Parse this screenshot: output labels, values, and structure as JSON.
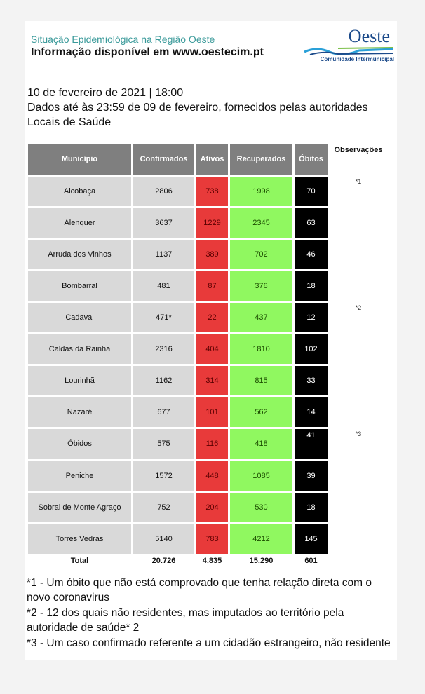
{
  "header": {
    "subtitle": "Situação Epidemiológica na Região Oeste",
    "info": "Informação disponível em www.oestecim.pt",
    "logo_text": "Oeste",
    "logo_sub": "Comunidade Intermunicipal"
  },
  "date_line": "10 de fevereiro de 2021 | 18:00",
  "data_line": "Dados até às 23:59 de 09 de fevereiro, fornecidos pelas autoridades Locais de Saúde",
  "table": {
    "headers": [
      "Município",
      "Confirmados",
      "Ativos",
      "Recuperados",
      "Óbitos",
      "Observações"
    ],
    "rows": [
      [
        "Alcobaça",
        "2806",
        "738",
        "1998",
        "70",
        "*1"
      ],
      [
        "Alenquer",
        "3637",
        "1229",
        "2345",
        "63",
        ""
      ],
      [
        "Arruda dos Vinhos",
        "1137",
        "389",
        "702",
        "46",
        ""
      ],
      [
        "Bombarral",
        "481",
        "87",
        "376",
        "18",
        ""
      ],
      [
        "Cadaval",
        "471*",
        "22",
        "437",
        "12",
        "*2"
      ],
      [
        "Caldas da Rainha",
        "2316",
        "404",
        "1810",
        "102",
        ""
      ],
      [
        "Lourinhã",
        "1162",
        "314",
        "815",
        "33",
        ""
      ],
      [
        "Nazaré",
        "677",
        "101",
        "562",
        "14",
        ""
      ],
      [
        "Óbidos",
        "575",
        "116",
        "418",
        "41",
        "*3"
      ],
      [
        "Peniche",
        "1572",
        "448",
        "1085",
        "39",
        ""
      ],
      [
        "Sobral de Monte Agraço",
        "752",
        "204",
        "530",
        "18",
        ""
      ],
      [
        "Torres Vedras",
        "5140",
        "783",
        "4212",
        "145",
        ""
      ]
    ],
    "total": [
      "Total",
      "20.726",
      "4.835",
      "15.290",
      "601"
    ]
  },
  "notes": [
    "*1 - Um óbito que não está comprovado que tenha relação direta com o novo coronavirus",
    "*2 - 12 dos quais não residentes, mas imputados ao território pela autoridade de saúde* 2",
    "*3 - Um caso confirmado referente a um cidadão estrangeiro, não residente"
  ]
}
